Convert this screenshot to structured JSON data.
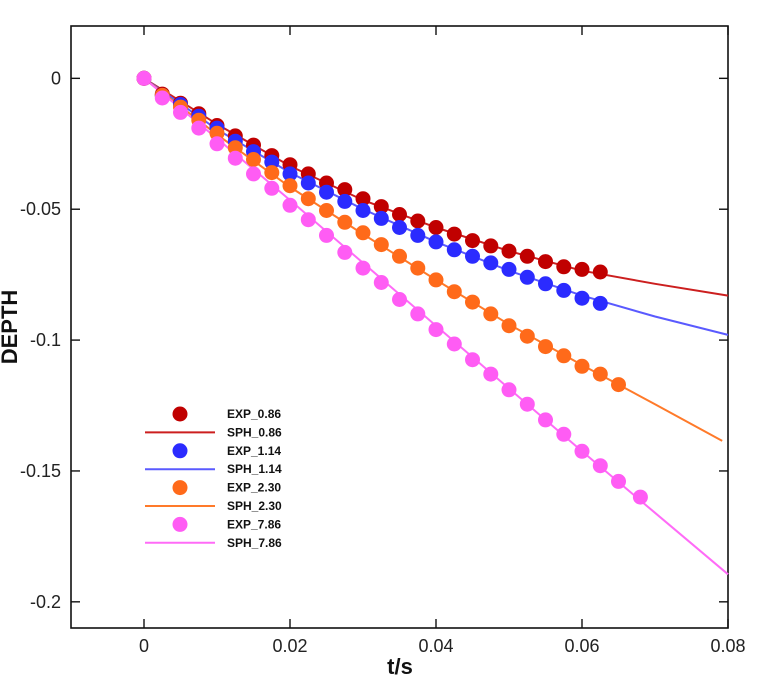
{
  "chart_data": {
    "type": "scatter",
    "title": "",
    "xlabel": "t/s",
    "ylabel": "DEPTH",
    "xlim": [
      -0.01,
      0.08
    ],
    "ylim": [
      -0.21,
      0.02
    ],
    "x_ticks": [
      0,
      0.02,
      0.04,
      0.06,
      0.08
    ],
    "x_tick_labels": [
      "0",
      "0.02",
      "0.04",
      "0.06",
      "0.08"
    ],
    "y_ticks": [
      0,
      -0.05,
      -0.1,
      -0.15,
      -0.2
    ],
    "y_tick_labels": [
      "0",
      "-0.05",
      "-0.1",
      "-0.15",
      "-0.2"
    ],
    "grid": false,
    "legend_position": "bottom-left",
    "series": [
      {
        "name": "EXP_0.86",
        "kind": "markers",
        "color": "#c00000",
        "x": [
          0.0,
          0.0025,
          0.005,
          0.0075,
          0.01,
          0.0125,
          0.015,
          0.0175,
          0.02,
          0.0225,
          0.025,
          0.0275,
          0.03,
          0.0325,
          0.035,
          0.0375,
          0.04,
          0.0425,
          0.045,
          0.0475,
          0.05,
          0.0525,
          0.055,
          0.0575,
          0.06,
          0.0625
        ],
        "y": [
          0.0,
          -0.006,
          -0.0095,
          -0.0135,
          -0.018,
          -0.022,
          -0.0255,
          -0.0295,
          -0.033,
          -0.0365,
          -0.04,
          -0.0425,
          -0.046,
          -0.049,
          -0.052,
          -0.0545,
          -0.057,
          -0.0595,
          -0.062,
          -0.064,
          -0.066,
          -0.068,
          -0.07,
          -0.072,
          -0.073,
          -0.074
        ]
      },
      {
        "name": "SPH_0.86",
        "kind": "line",
        "color": "#cc1f1f",
        "x": [
          0.0,
          0.01,
          0.02,
          0.03,
          0.04,
          0.05,
          0.06,
          0.07,
          0.08
        ],
        "y": [
          0.0,
          -0.0175,
          -0.0335,
          -0.0465,
          -0.057,
          -0.066,
          -0.0735,
          -0.0785,
          -0.083
        ]
      },
      {
        "name": "EXP_1.14",
        "kind": "markers",
        "color": "#2b2bff",
        "x": [
          0.0,
          0.0025,
          0.005,
          0.0075,
          0.01,
          0.0125,
          0.015,
          0.0175,
          0.02,
          0.0225,
          0.025,
          0.0275,
          0.03,
          0.0325,
          0.035,
          0.0375,
          0.04,
          0.0425,
          0.045,
          0.0475,
          0.05,
          0.0525,
          0.055,
          0.0575,
          0.06,
          0.0625
        ],
        "y": [
          0.0,
          -0.0065,
          -0.01,
          -0.0145,
          -0.019,
          -0.024,
          -0.028,
          -0.032,
          -0.0365,
          -0.04,
          -0.0435,
          -0.047,
          -0.0505,
          -0.0535,
          -0.057,
          -0.06,
          -0.0625,
          -0.0655,
          -0.068,
          -0.0705,
          -0.073,
          -0.076,
          -0.0785,
          -0.081,
          -0.084,
          -0.086
        ]
      },
      {
        "name": "SPH_1.14",
        "kind": "line",
        "color": "#5a5aff",
        "x": [
          0.0,
          0.01,
          0.02,
          0.03,
          0.04,
          0.05,
          0.06,
          0.07,
          0.08
        ],
        "y": [
          0.0,
          -0.0195,
          -0.036,
          -0.05,
          -0.0625,
          -0.0735,
          -0.083,
          -0.091,
          -0.098
        ]
      },
      {
        "name": "EXP_2.30",
        "kind": "markers",
        "color": "#ff6a1a",
        "x": [
          0.0,
          0.0025,
          0.005,
          0.0075,
          0.01,
          0.0125,
          0.015,
          0.0175,
          0.02,
          0.0225,
          0.025,
          0.0275,
          0.03,
          0.0325,
          0.035,
          0.0375,
          0.04,
          0.0425,
          0.045,
          0.0475,
          0.05,
          0.0525,
          0.055,
          0.0575,
          0.06,
          0.0625,
          0.065
        ],
        "y": [
          0.0,
          -0.0065,
          -0.011,
          -0.016,
          -0.021,
          -0.0265,
          -0.031,
          -0.036,
          -0.041,
          -0.046,
          -0.0505,
          -0.055,
          -0.059,
          -0.0635,
          -0.068,
          -0.0725,
          -0.077,
          -0.0815,
          -0.0855,
          -0.09,
          -0.0945,
          -0.0985,
          -0.1025,
          -0.106,
          -0.11,
          -0.113,
          -0.117
        ]
      },
      {
        "name": "SPH_2.30",
        "kind": "line",
        "color": "#ff7a2a",
        "x": [
          0.0,
          0.01,
          0.02,
          0.03,
          0.04,
          0.05,
          0.06,
          0.07,
          0.0792
        ],
        "y": [
          0.0,
          -0.0215,
          -0.0415,
          -0.0595,
          -0.077,
          -0.094,
          -0.1095,
          -0.1245,
          -0.1385
        ]
      },
      {
        "name": "EXP_7.86",
        "kind": "markers",
        "color": "#ff5cf4",
        "x": [
          0.0,
          0.0025,
          0.005,
          0.0075,
          0.01,
          0.0125,
          0.015,
          0.0175,
          0.02,
          0.0225,
          0.025,
          0.0275,
          0.03,
          0.0325,
          0.035,
          0.0375,
          0.04,
          0.0425,
          0.045,
          0.0475,
          0.05,
          0.0525,
          0.055,
          0.0575,
          0.06,
          0.0625,
          0.065,
          0.068
        ],
        "y": [
          0.0,
          -0.0075,
          -0.013,
          -0.019,
          -0.025,
          -0.0305,
          -0.0365,
          -0.042,
          -0.0485,
          -0.054,
          -0.06,
          -0.0665,
          -0.0725,
          -0.078,
          -0.0845,
          -0.09,
          -0.096,
          -0.1015,
          -0.1075,
          -0.113,
          -0.119,
          -0.1245,
          -0.1305,
          -0.136,
          -0.1425,
          -0.148,
          -0.154,
          -0.16
        ]
      },
      {
        "name": "SPH_7.86",
        "kind": "line",
        "color": "#ff6bf7",
        "x": [
          0.0,
          0.01,
          0.02,
          0.03,
          0.04,
          0.05,
          0.06,
          0.07,
          0.08
        ],
        "y": [
          0.0,
          -0.023,
          -0.0465,
          -0.0705,
          -0.0945,
          -0.1185,
          -0.1425,
          -0.166,
          -0.1895
        ]
      }
    ]
  }
}
